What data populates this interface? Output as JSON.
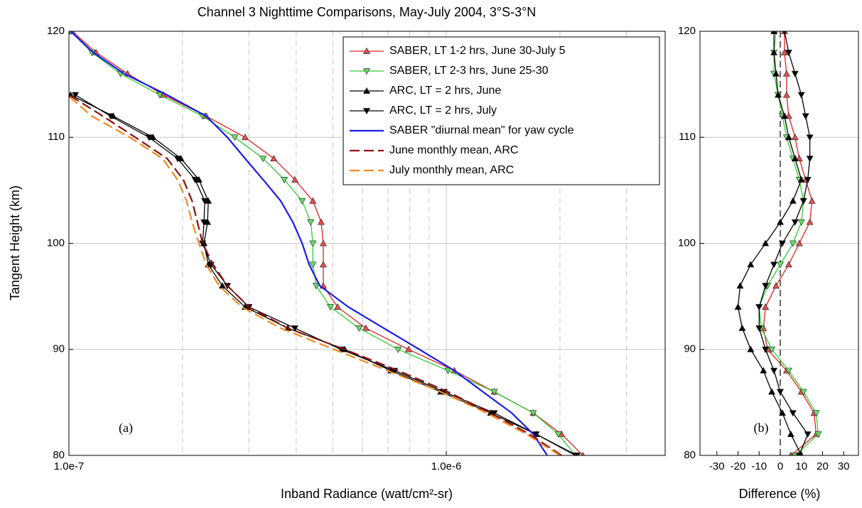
{
  "chart_data": [
    {
      "type": "line",
      "title": "Channel 3 Nighttime Comparisons, May-July 2004, 3°S-3°N",
      "xlabel": "Inband Radiance (watt/cm²-sr)",
      "ylabel": "Tangent Height (km)",
      "annotation": "(a)",
      "xscale": "log",
      "xlim": [
        1e-07,
        3.8e-06
      ],
      "xticks": [
        {
          "value": 1e-07,
          "label": "1.0e-7"
        },
        {
          "value": 1e-06,
          "label": "1.0e-6"
        }
      ],
      "xminor": [
        2e-07,
        3e-07,
        4e-07,
        5e-07,
        6e-07,
        7e-07,
        8e-07,
        9e-07,
        2e-06,
        3e-06
      ],
      "ylim": [
        80,
        120
      ],
      "yticks": [
        80,
        90,
        100,
        110,
        120
      ],
      "grid": true,
      "legend": "upper right",
      "series": [
        {
          "name": "SABER, LT 1-2 hrs, June 30-July 5",
          "color": "#e02020",
          "marker": "triangle-up",
          "marker_color": "#e05050",
          "heights": [
            80,
            82,
            84,
            86,
            88,
            90,
            92,
            94,
            96,
            98,
            100,
            102,
            104,
            106,
            108,
            110,
            112,
            114,
            116,
            118,
            120
          ],
          "values": [
            2.3e-06,
            2.02e-06,
            1.7e-06,
            1.34e-06,
            1.05e-06,
            7.94e-07,
            6.12e-07,
            5.15e-07,
            4.72e-07,
            4.72e-07,
            4.72e-07,
            4.66e-07,
            4.43e-07,
            3.97e-07,
            3.49e-07,
            2.93e-07,
            2.31e-07,
            1.78e-07,
            1.43e-07,
            1.18e-07,
            1.02e-07
          ]
        },
        {
          "name": "SABER, LT 2-3 hrs, June 25-30",
          "color": "#33cc33",
          "marker": "triangle-down",
          "marker_color": "#66dd66",
          "heights": [
            80,
            82,
            84,
            86,
            88,
            90,
            92,
            94,
            96,
            98,
            100,
            102,
            104,
            106,
            108,
            110,
            112,
            114,
            116,
            118,
            120
          ],
          "values": [
            2.2e-06,
            1.98e-06,
            1.7e-06,
            1.34e-06,
            1.01e-06,
            7.45e-07,
            5.87e-07,
            4.93e-07,
            4.52e-07,
            4.43e-07,
            4.43e-07,
            4.37e-07,
            4.15e-07,
            3.72e-07,
            3.27e-07,
            2.75e-07,
            2.26e-07,
            1.74e-07,
            1.37e-07,
            1.15e-07,
            1.01e-07
          ]
        },
        {
          "name": "ARC, LT = 2 hrs, June",
          "color": "#000000",
          "marker": "triangle-up",
          "marker_color": "#000000",
          "heights": [
            80,
            82,
            84,
            86,
            88,
            90,
            92,
            94,
            96,
            98,
            100,
            102,
            104,
            106,
            108,
            110,
            112,
            114
          ],
          "values": [
            2.2e-06,
            1.73e-06,
            1.31e-06,
            9.66e-07,
            7.13e-07,
            5.38e-07,
            3.8e-07,
            2.93e-07,
            2.55e-07,
            2.34e-07,
            2.28e-07,
            2.33e-07,
            2.34e-07,
            2.21e-07,
            1.98e-07,
            1.67e-07,
            1.31e-07,
            1.01e-07
          ]
        },
        {
          "name": "ARC, LT = 2 hrs, July",
          "color": "#000000",
          "marker": "triangle-down",
          "marker_color": "#000000",
          "heights": [
            80,
            82,
            84,
            86,
            88,
            90,
            92,
            94,
            96,
            98,
            100,
            102,
            104,
            106,
            108,
            110,
            112,
            114
          ],
          "values": [
            2.22e-06,
            1.73e-06,
            1.34e-06,
            9.87e-07,
            7.29e-07,
            5.26e-07,
            3.97e-07,
            3e-07,
            2.63e-07,
            2.38e-07,
            2.26e-07,
            2.28e-07,
            2.29e-07,
            2.16e-07,
            1.94e-07,
            1.63e-07,
            1.29e-07,
            1.04e-07
          ]
        },
        {
          "name": "SABER \"diurnal mean\" for yaw cycle",
          "color": "#1a1aee",
          "heights": [
            80,
            82,
            84,
            86,
            88,
            90,
            92,
            94,
            96,
            98,
            100,
            102,
            104,
            106,
            108,
            110,
            112,
            114,
            116,
            118,
            120
          ],
          "values": [
            1.85e-06,
            1.7e-06,
            1.49e-06,
            1.25e-06,
            1.05e-06,
            8.48e-07,
            6.83e-07,
            5.5e-07,
            4.62e-07,
            4.33e-07,
            4.15e-07,
            3.92e-07,
            3.64e-07,
            3.27e-07,
            2.93e-07,
            2.63e-07,
            2.31e-07,
            1.82e-07,
            1.4e-07,
            1.16e-07,
            1.01e-07
          ]
        },
        {
          "name": "June monthly mean, ARC",
          "color": "#8b1010",
          "dash": true,
          "heights": [
            80,
            82,
            84,
            86,
            88,
            90,
            92,
            94,
            96,
            98,
            100,
            102,
            104,
            106,
            108,
            110,
            112,
            114
          ],
          "values": [
            2.02e-06,
            1.66e-06,
            1.31e-06,
            1.01e-06,
            7.45e-07,
            5.38e-07,
            3.8e-07,
            3e-07,
            2.63e-07,
            2.41e-07,
            2.26e-07,
            2.19e-07,
            2.12e-07,
            2.01e-07,
            1.82e-07,
            1.5e-07,
            1.23e-07,
            1e-07
          ]
        },
        {
          "name": "July monthly mean, ARC",
          "color": "#f08a1c",
          "dash": true,
          "heights": [
            80,
            82,
            84,
            86,
            88,
            90,
            92,
            94,
            96,
            98,
            100,
            102,
            104,
            106,
            108,
            110,
            112,
            114
          ],
          "values": [
            2e-06,
            1.63e-06,
            1.28e-06,
            9.66e-07,
            6.98e-07,
            5.04e-07,
            3.64e-07,
            2.87e-07,
            2.5e-07,
            2.31e-07,
            2.21e-07,
            2.12e-07,
            2.05e-07,
            1.94e-07,
            1.77e-07,
            1.45e-07,
            1.15e-07,
            9.9e-08
          ]
        }
      ]
    },
    {
      "type": "line",
      "xlabel": "Difference (%)",
      "annotation": "(b)",
      "xlim": [
        -38,
        37
      ],
      "xticks": [
        -30,
        -20,
        -10,
        0,
        10,
        20,
        30
      ],
      "ylim": [
        80,
        120
      ],
      "yticks": [
        80,
        90,
        100,
        110,
        120
      ],
      "grid": true,
      "refline": 0,
      "series": [
        {
          "color": "#e02020",
          "marker": "triangle-up",
          "marker_color": "#e05050",
          "heights": [
            80,
            82,
            84,
            86,
            88,
            90,
            92,
            94,
            96,
            98,
            100,
            102,
            104,
            106,
            108,
            110,
            112,
            114,
            116,
            118,
            120
          ],
          "values": [
            5,
            17,
            16,
            10,
            3,
            -6,
            -8,
            -7,
            -2,
            4,
            9,
            14,
            15,
            12,
            9,
            7,
            4,
            3,
            3,
            2,
            2
          ]
        },
        {
          "color": "#33cc33",
          "marker": "triangle-down",
          "marker_color": "#66dd66",
          "heights": [
            80,
            82,
            84,
            86,
            88,
            90,
            92,
            94,
            96,
            98,
            100,
            102,
            104,
            106,
            108,
            110,
            112,
            114,
            116,
            118,
            120
          ],
          "values": [
            7,
            18,
            17,
            11,
            4,
            -4,
            -9,
            -10,
            -6,
            0,
            6,
            10,
            11,
            9,
            6,
            3,
            1,
            -1,
            -3,
            -3,
            -2
          ]
        },
        {
          "color": "#000000",
          "marker": "triangle-up",
          "marker_color": "#000000",
          "heights": [
            80,
            82,
            84,
            86,
            88,
            90,
            92,
            94,
            96,
            98,
            100,
            102,
            104,
            106,
            108,
            110,
            112,
            114,
            116,
            118,
            120
          ],
          "values": [
            10,
            5,
            1,
            -4,
            -8,
            -14,
            -18,
            -20,
            -19,
            -14,
            -7,
            0,
            6,
            10,
            7,
            4,
            2,
            -1,
            -2,
            -3,
            -3
          ]
        },
        {
          "color": "#000000",
          "marker": "triangle-down",
          "marker_color": "#000000",
          "heights": [
            80,
            82,
            84,
            86,
            88,
            90,
            92,
            94,
            96,
            98,
            100,
            102,
            104,
            106,
            108,
            110,
            112,
            114,
            116,
            118,
            120
          ],
          "values": [
            9,
            13,
            6,
            0,
            -3,
            -7,
            -10,
            -10,
            -7,
            -3,
            1,
            7,
            11,
            13,
            14,
            14,
            12,
            10,
            7,
            4,
            2
          ]
        }
      ]
    }
  ]
}
